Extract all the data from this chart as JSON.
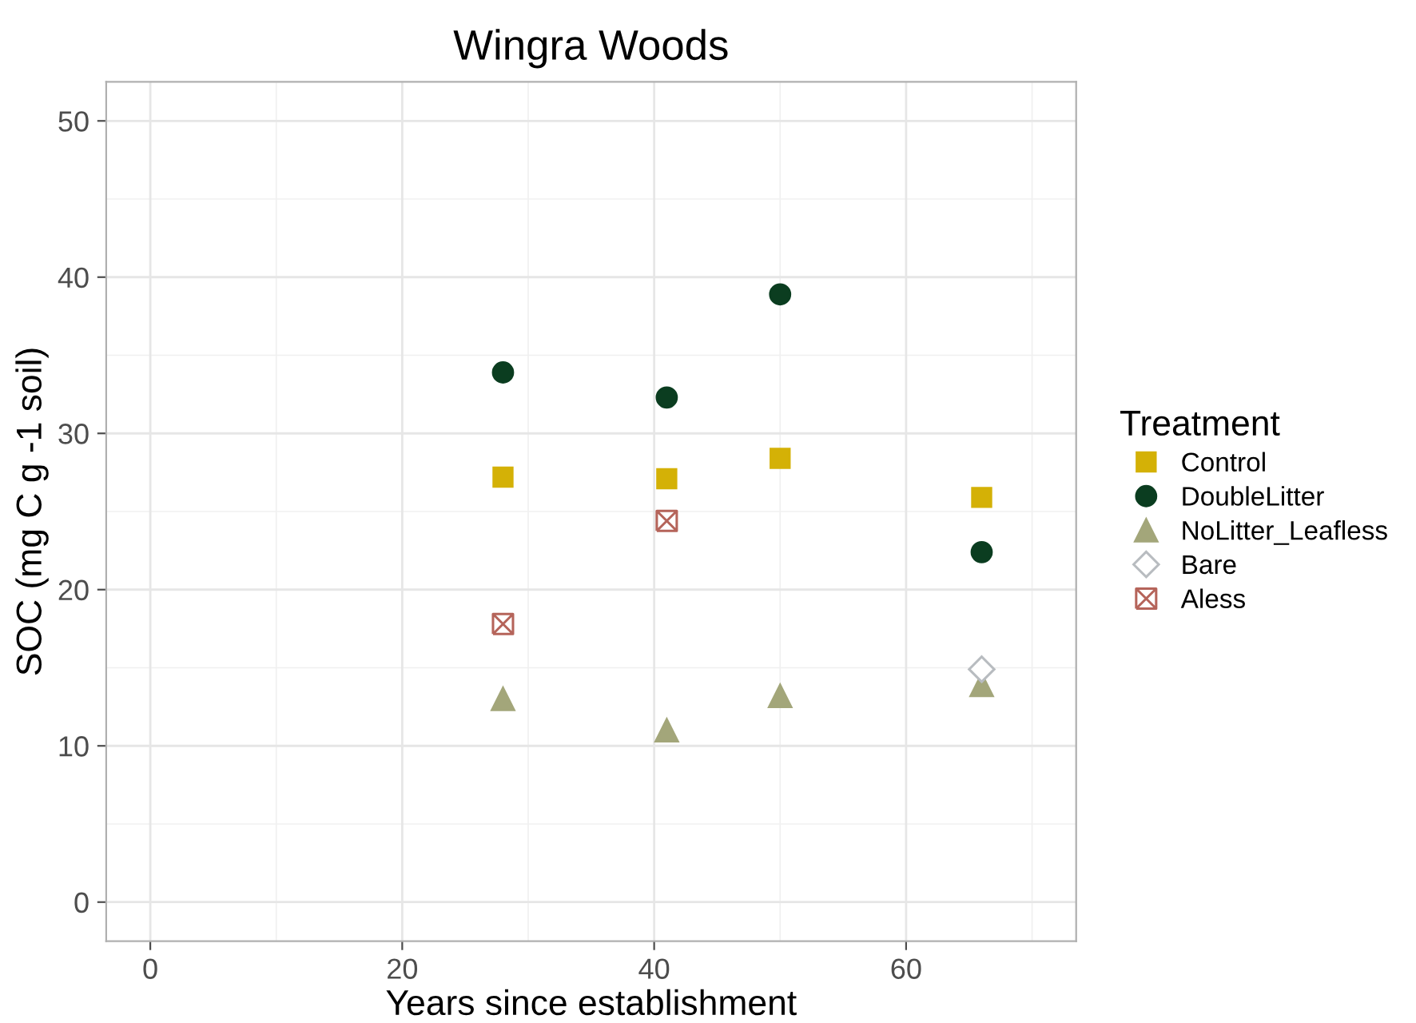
{
  "chart_data": {
    "type": "scatter",
    "title": "Wingra Woods",
    "xlabel": "Years since establishment",
    "ylabel": "SOC (mg C g -1 soil)",
    "legend_title": "Treatment",
    "legend": "right",
    "grid": true,
    "xlim": [
      -3.5,
      73.5
    ],
    "xticks": [
      0,
      20,
      40,
      60
    ],
    "ylim": [
      -2.5,
      52.5
    ],
    "yticks": [
      0,
      10,
      20,
      30,
      40,
      50
    ],
    "series": [
      {
        "name": "Control",
        "color": "#d4b106",
        "marker": "square",
        "x": [
          28,
          41,
          50,
          66
        ],
        "values": [
          27.2,
          27.1,
          28.4,
          25.9
        ]
      },
      {
        "name": "DoubleLitter",
        "color": "#0b3d20",
        "marker": "circle",
        "x": [
          28,
          41,
          50,
          66
        ],
        "values": [
          33.9,
          32.3,
          38.9,
          22.4
        ]
      },
      {
        "name": "NoLitter_Leafless",
        "color": "#a3a67a",
        "marker": "triangle",
        "x": [
          28,
          41,
          50,
          66
        ],
        "values": [
          13.0,
          11.0,
          13.2,
          13.9
        ]
      },
      {
        "name": "Bare",
        "color": "#b8bcc0",
        "marker": "diamond",
        "x": [
          66
        ],
        "values": [
          14.9
        ]
      },
      {
        "name": "Aless",
        "color": "#b5645a",
        "marker": "cross",
        "x": [
          28,
          41
        ],
        "values": [
          17.8,
          24.4
        ]
      }
    ]
  }
}
